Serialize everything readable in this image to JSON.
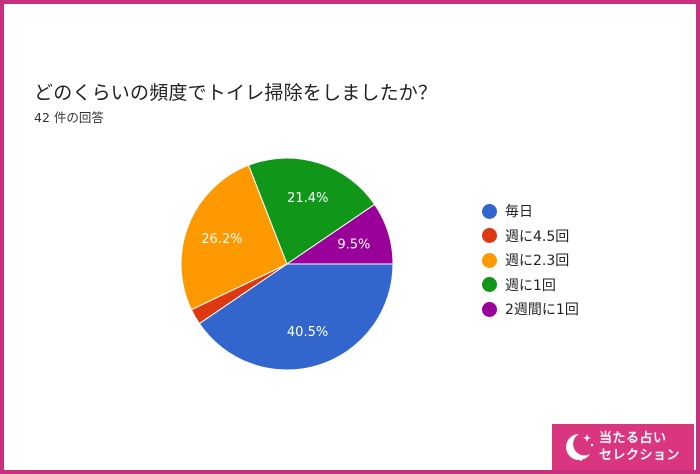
{
  "question": {
    "title": "どのくらいの頻度でトイレ掃除をしましたか？",
    "responses": "42 件の回答"
  },
  "chart_data": {
    "type": "pie",
    "title": "どのくらいの頻度でトイレ掃除をしましたか？",
    "subtitle": "42 件の回答",
    "categories": [
      "毎日",
      "週に4.5回",
      "週に2.3回",
      "週に1回",
      "2週間に1回"
    ],
    "values": [
      40.5,
      2.4,
      26.2,
      21.4,
      9.5
    ],
    "data_labels": [
      "40.5%",
      "",
      "26.2%",
      "21.4%",
      "9.5%"
    ],
    "colors": [
      "#3366cc",
      "#dc3912",
      "#ff9900",
      "#109618",
      "#990099"
    ],
    "legend_position": "right"
  },
  "badge": {
    "line1": "当たる占い",
    "line2": "セレクション",
    "icon": "moon-icon"
  }
}
